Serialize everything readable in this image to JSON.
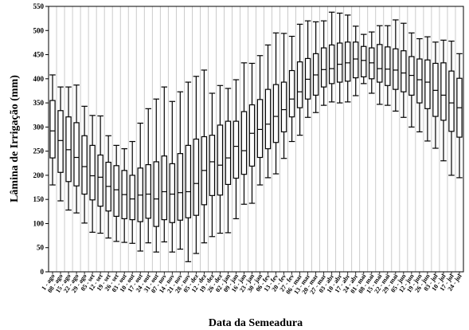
{
  "chart_data": {
    "type": "boxplot",
    "xlabel": "Data da Semeadura",
    "ylabel": "Lâmina de Irrigação (mm)",
    "ylim": [
      0,
      550
    ],
    "yticks": [
      0,
      50,
      100,
      150,
      200,
      250,
      300,
      350,
      400,
      450,
      500,
      550
    ],
    "grid": "vertical",
    "categories": [
      "1 - ago",
      "08 - ago",
      "15 - ago",
      "22 - ago",
      "29 - ago",
      "05 - set",
      "12 - set",
      "19 - set",
      "26 - set",
      "03 - out",
      "10 - out",
      "17 - out",
      "24 - out",
      "31 - out",
      "07 - nov",
      "14 - nov",
      "21 - nov",
      "28 - nov",
      "05 - dez",
      "12 - dez",
      "19 - dez",
      "26 - dez",
      "02 - jan",
      "09 - jan",
      "16 - jan",
      "23 - jan",
      "30 - jan",
      "06 - fev",
      "13 - fev",
      "20 - fev",
      "27 - fev",
      "06 - mar",
      "13 - mar",
      "20 - mar",
      "27 - mar",
      "03 - abr",
      "10 - abr",
      "17 - abr",
      "24 - abr",
      "01 - mai",
      "08 - mai",
      "15 - mai",
      "22 - mai",
      "29 - mai",
      "05 - jun",
      "12 - jun",
      "19 - jun",
      "26 - jun",
      "03 - jul",
      "10 - jul",
      "17 - jul",
      "24 - jul"
    ],
    "boxes": [
      {
        "min": 180,
        "q1": 236,
        "median": 292,
        "q3": 355,
        "max": 408
      },
      {
        "min": 147,
        "q1": 206,
        "median": 272,
        "q3": 334,
        "max": 383
      },
      {
        "min": 128,
        "q1": 187,
        "median": 253,
        "q3": 321,
        "max": 383
      },
      {
        "min": 122,
        "q1": 178,
        "median": 237,
        "q3": 309,
        "max": 387
      },
      {
        "min": 101,
        "q1": 161,
        "median": 218,
        "q3": 282,
        "max": 343
      },
      {
        "min": 82,
        "q1": 149,
        "median": 199,
        "q3": 262,
        "max": 324
      },
      {
        "min": 80,
        "q1": 136,
        "median": 196,
        "q3": 242,
        "max": 323
      },
      {
        "min": 70,
        "q1": 126,
        "median": 177,
        "q3": 227,
        "max": 282
      },
      {
        "min": 63,
        "q1": 115,
        "median": 170,
        "q3": 220,
        "max": 262
      },
      {
        "min": 61,
        "q1": 110,
        "median": 160,
        "q3": 210,
        "max": 255
      },
      {
        "min": 59,
        "q1": 108,
        "median": 151,
        "q3": 200,
        "max": 270
      },
      {
        "min": 43,
        "q1": 104,
        "median": 159,
        "q3": 215,
        "max": 308
      },
      {
        "min": 60,
        "q1": 111,
        "median": 161,
        "q3": 222,
        "max": 338
      },
      {
        "min": 41,
        "q1": 94,
        "median": 151,
        "q3": 228,
        "max": 358
      },
      {
        "min": 62,
        "q1": 108,
        "median": 166,
        "q3": 240,
        "max": 383
      },
      {
        "min": 41,
        "q1": 102,
        "median": 161,
        "q3": 224,
        "max": 353
      },
      {
        "min": 47,
        "q1": 107,
        "median": 164,
        "q3": 245,
        "max": 373
      },
      {
        "min": 21,
        "q1": 112,
        "median": 166,
        "q3": 262,
        "max": 393
      },
      {
        "min": 38,
        "q1": 117,
        "median": 183,
        "q3": 275,
        "max": 405
      },
      {
        "min": 60,
        "q1": 139,
        "median": 210,
        "q3": 280,
        "max": 418
      },
      {
        "min": 73,
        "q1": 158,
        "median": 228,
        "q3": 283,
        "max": 370
      },
      {
        "min": 80,
        "q1": 159,
        "median": 221,
        "q3": 304,
        "max": 386
      },
      {
        "min": 81,
        "q1": 181,
        "median": 236,
        "q3": 312,
        "max": 380
      },
      {
        "min": 110,
        "q1": 194,
        "median": 260,
        "q3": 312,
        "max": 398
      },
      {
        "min": 140,
        "q1": 202,
        "median": 251,
        "q3": 332,
        "max": 433
      },
      {
        "min": 142,
        "q1": 219,
        "median": 287,
        "q3": 346,
        "max": 432
      },
      {
        "min": 180,
        "q1": 237,
        "median": 295,
        "q3": 357,
        "max": 448
      },
      {
        "min": 195,
        "q1": 255,
        "median": 306,
        "q3": 378,
        "max": 470
      },
      {
        "min": 203,
        "q1": 268,
        "median": 322,
        "q3": 388,
        "max": 495
      },
      {
        "min": 235,
        "q1": 290,
        "median": 336,
        "q3": 393,
        "max": 494
      },
      {
        "min": 270,
        "q1": 321,
        "median": 358,
        "q3": 417,
        "max": 488
      },
      {
        "min": 283,
        "q1": 340,
        "median": 373,
        "q3": 435,
        "max": 513
      },
      {
        "min": 320,
        "q1": 358,
        "median": 399,
        "q3": 442,
        "max": 520
      },
      {
        "min": 330,
        "q1": 366,
        "median": 408,
        "q3": 452,
        "max": 518
      },
      {
        "min": 345,
        "q1": 383,
        "median": 419,
        "q3": 464,
        "max": 520
      },
      {
        "min": 352,
        "q1": 390,
        "median": 421,
        "q3": 470,
        "max": 538
      },
      {
        "min": 350,
        "q1": 393,
        "median": 430,
        "q3": 474,
        "max": 536
      },
      {
        "min": 352,
        "q1": 395,
        "median": 433,
        "q3": 476,
        "max": 532
      },
      {
        "min": 365,
        "q1": 402,
        "median": 441,
        "q3": 476,
        "max": 509
      },
      {
        "min": 390,
        "q1": 404,
        "median": 438,
        "q3": 467,
        "max": 492
      },
      {
        "min": 370,
        "q1": 400,
        "median": 433,
        "q3": 464,
        "max": 497
      },
      {
        "min": 347,
        "q1": 393,
        "median": 421,
        "q3": 471,
        "max": 510
      },
      {
        "min": 345,
        "q1": 386,
        "median": 420,
        "q3": 466,
        "max": 510
      },
      {
        "min": 333,
        "q1": 378,
        "median": 418,
        "q3": 462,
        "max": 522
      },
      {
        "min": 320,
        "q1": 373,
        "median": 412,
        "q3": 458,
        "max": 515
      },
      {
        "min": 300,
        "q1": 366,
        "median": 407,
        "q3": 446,
        "max": 495
      },
      {
        "min": 290,
        "q1": 350,
        "median": 398,
        "q3": 441,
        "max": 483
      },
      {
        "min": 271,
        "q1": 338,
        "median": 393,
        "q3": 439,
        "max": 487
      },
      {
        "min": 256,
        "q1": 322,
        "median": 376,
        "q3": 432,
        "max": 476
      },
      {
        "min": 230,
        "q1": 314,
        "median": 366,
        "q3": 433,
        "max": 480
      },
      {
        "min": 200,
        "q1": 291,
        "median": 350,
        "q3": 416,
        "max": 478
      },
      {
        "min": 195,
        "q1": 279,
        "median": 340,
        "q3": 401,
        "max": 452
      }
    ]
  }
}
